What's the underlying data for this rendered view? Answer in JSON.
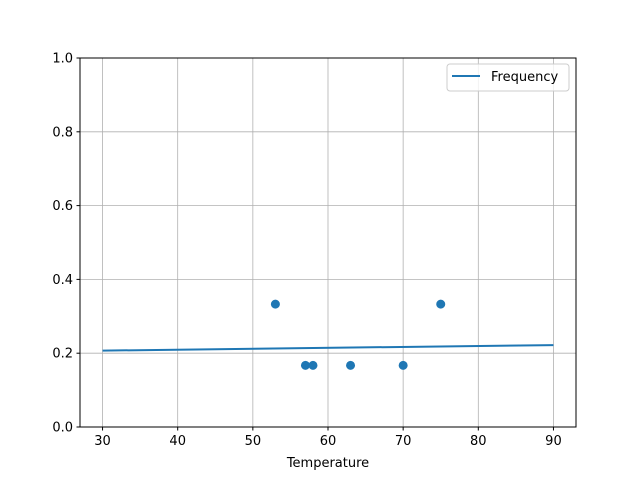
{
  "chart_data": {
    "type": "scatter",
    "title": "",
    "xlabel": "Temperature",
    "ylabel": "",
    "xlim": [
      27,
      93
    ],
    "ylim": [
      0,
      1
    ],
    "xticks": [
      30,
      40,
      50,
      60,
      70,
      80,
      90
    ],
    "yticks": [
      "0.0",
      "0.2",
      "0.4",
      "0.6",
      "0.8",
      "1.0"
    ],
    "grid": true,
    "legend_position": "top-right",
    "color": "#1f77b4",
    "scatter_points": [
      {
        "x": 53,
        "y": 0.333
      },
      {
        "x": 57,
        "y": 0.167
      },
      {
        "x": 58,
        "y": 0.167
      },
      {
        "x": 63,
        "y": 0.167
      },
      {
        "x": 70,
        "y": 0.167
      },
      {
        "x": 75,
        "y": 0.333
      }
    ],
    "series": [
      {
        "name": "Frequency",
        "type": "line",
        "x": [
          30,
          90
        ],
        "y": [
          0.207,
          0.222
        ]
      }
    ]
  }
}
